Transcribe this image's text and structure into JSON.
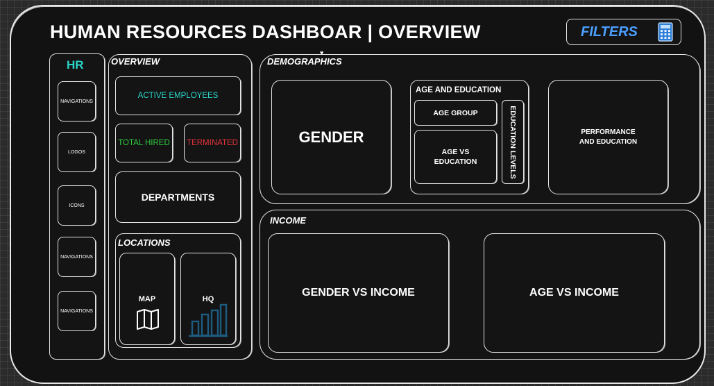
{
  "header": {
    "title": "HUMAN RESOURCES DASHBOAR | OVERVIEW",
    "filters_label": "FILTERS",
    "filters_icon": "calculator-icon"
  },
  "sidebar": {
    "brand": "HR",
    "brand_color": "#2ad6c9",
    "items": [
      {
        "label": "NAVIGATIONS"
      },
      {
        "label": "LOGOS"
      },
      {
        "label": "ICONS"
      },
      {
        "label": "NAVIGATIONS"
      },
      {
        "label": "NAVIGATIONS"
      }
    ]
  },
  "overview": {
    "section_label": "OVERVIEW",
    "active_employees": {
      "label": "ACTIVE EMPLOYEES",
      "color": "#2ad6c9"
    },
    "total_hired": {
      "label": "TOTAL HIRED",
      "color": "#2ecc40"
    },
    "terminated": {
      "label": "TERMINATED",
      "color": "#e8333a"
    },
    "departments": "DEPARTMENTS",
    "locations": {
      "section_label": "LOCATIONS",
      "map": {
        "label": "MAP",
        "icon": "map-icon"
      },
      "hq": {
        "label": "HQ",
        "icon": "bar-chart-icon",
        "icon_color": "#1d5c80"
      }
    }
  },
  "demographics": {
    "section_label": "DEMOGRAPHICS",
    "gender": "GENDER",
    "age_education": {
      "section_label": "AGE AND EDUCATION",
      "age_group": "AGE GROUP",
      "age_vs_education_line1": "AGE VS",
      "age_vs_education_line2": "EDUCATION",
      "education_levels": "EDUCATION LEVELS"
    },
    "performance_line1": "PERFORMANCE",
    "performance_line2": "AND EDUCATION"
  },
  "income": {
    "section_label": "INCOME",
    "gender_vs_income": "GENDER VS INCOME",
    "age_vs_income": "AGE VS INCOME"
  }
}
